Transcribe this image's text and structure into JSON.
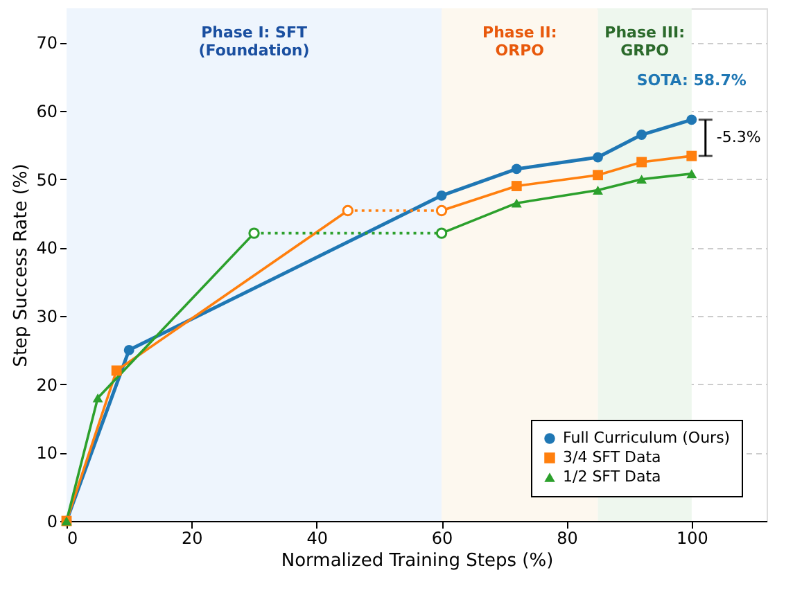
{
  "chart_data": {
    "type": "line",
    "xlabel": "Normalized Training Steps (%)",
    "ylabel": "Step Success Rate (%)",
    "xlim": [
      0,
      112
    ],
    "ylim": [
      0,
      75
    ],
    "xticks": [
      0,
      20,
      40,
      60,
      80,
      100
    ],
    "yticks": [
      0,
      10,
      20,
      30,
      40,
      50,
      60,
      70
    ],
    "grid": "y",
    "legend": "bottom right",
    "series": [
      {
        "name": "Full Curriculum (Ours)",
        "color": "#1f77b4",
        "marker": "circle",
        "line_style": "solid",
        "x": [
          0,
          10,
          60,
          72,
          85,
          92,
          100
        ],
        "values": [
          0,
          25,
          47.6,
          51.5,
          53.2,
          56.5,
          58.7
        ]
      },
      {
        "name": "3/4 SFT Data",
        "color": "#ff7f0e",
        "marker": "square",
        "line_style": "solid",
        "x": [
          0,
          8,
          45
        ],
        "values": [
          0,
          22,
          45.4
        ]
      },
      {
        "color": "#ff7f0e",
        "marker": "circle",
        "line_style": "dotted",
        "x": [
          45,
          60
        ],
        "values": [
          45.4,
          45.4
        ]
      },
      {
        "color": "#ff7f0e",
        "marker": "square",
        "line_style": "solid",
        "x": [
          60,
          72,
          85,
          92,
          100
        ],
        "values": [
          45.4,
          49,
          50.6,
          52.5,
          53.4
        ]
      },
      {
        "name": "1/2 SFT Data",
        "color": "#2ca02c",
        "marker": "triangle",
        "line_style": "solid",
        "x": [
          0,
          5,
          30
        ],
        "values": [
          0,
          18,
          42.1
        ]
      },
      {
        "color": "#2ca02c",
        "marker": "circle",
        "line_style": "dotted",
        "x": [
          30,
          60
        ],
        "values": [
          42.1,
          42.1
        ]
      },
      {
        "color": "#2ca02c",
        "marker": "triangle",
        "line_style": "solid",
        "x": [
          60,
          72,
          85,
          92,
          100
        ],
        "values": [
          42.1,
          46.5,
          48.4,
          50,
          50.8
        ]
      }
    ],
    "bands": [
      {
        "axis": "x",
        "from": 0,
        "to": 60,
        "label": "Phase I: SFT\n(Foundation)",
        "color": "#eef5fd"
      },
      {
        "axis": "x",
        "from": 60,
        "to": 85,
        "label": "Phase II:\nORPO",
        "color": "#fdf8ef"
      },
      {
        "axis": "x",
        "from": 85,
        "to": 100,
        "label": "Phase III:\nGRPO",
        "color": "#eef7ee"
      }
    ],
    "annotations": [
      {
        "text": "SOTA: 58.7%",
        "x": 100,
        "y": 58.7
      },
      {
        "text": "-5.3%",
        "x": 100,
        "y": 56.05
      }
    ]
  }
}
